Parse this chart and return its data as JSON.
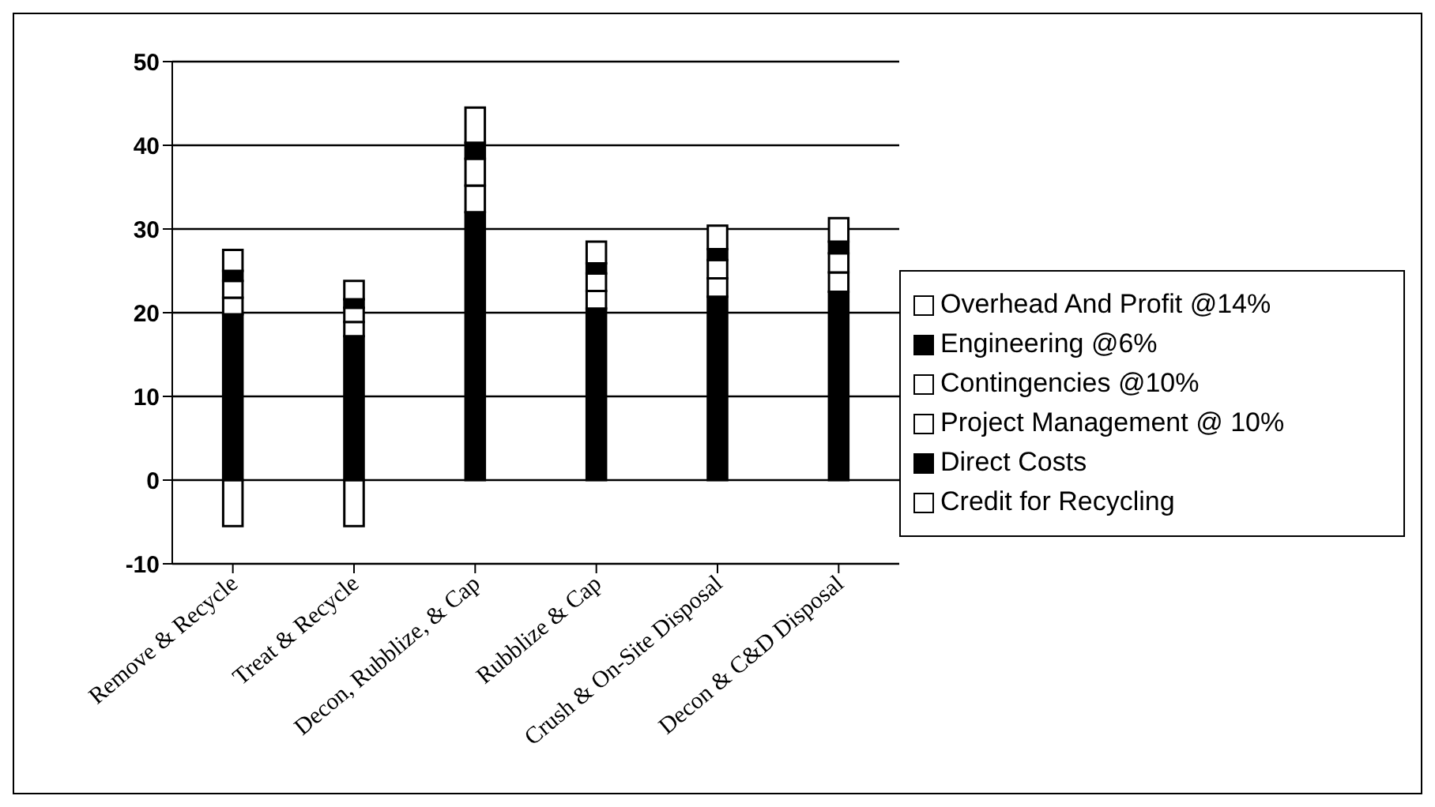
{
  "chart_data": {
    "type": "bar",
    "stacked": true,
    "categories": [
      "Remove & Recycle",
      "Treat & Recycle",
      "Decon, Rubblize, & Cap",
      "Rubblize & Cap",
      "Crush & On-Site Disposal",
      "Decon & C&D Disposal"
    ],
    "series": [
      {
        "name": "Credit for Recycling",
        "color": "#ffffff",
        "values": [
          -5.5,
          -5.5,
          null,
          null,
          null,
          null
        ]
      },
      {
        "name": "Direct Costs",
        "color": "#000000",
        "values": [
          19.8,
          17.2,
          32,
          20.5,
          21.9,
          22.5
        ]
      },
      {
        "name": "Project Management @ 10%",
        "color": "#ffffff",
        "values": [
          2.0,
          1.7,
          3.2,
          2.1,
          2.2,
          2.3
        ]
      },
      {
        "name": "Contingencies @10%",
        "color": "#ffffff",
        "values": [
          2.0,
          1.7,
          3.2,
          2.1,
          2.2,
          2.3
        ]
      },
      {
        "name": "Engineering @6%",
        "color": "#000000",
        "values": [
          1.2,
          1.0,
          1.9,
          1.2,
          1.3,
          1.4
        ]
      },
      {
        "name": "Overhead And Profit @14%",
        "color": "#ffffff",
        "values": [
          2.5,
          2.2,
          4.2,
          2.6,
          2.8,
          2.8
        ]
      }
    ],
    "ylim": [
      -10,
      50
    ],
    "yticks": [
      -10,
      0,
      10,
      20,
      30,
      40,
      50
    ],
    "grid": "y",
    "legend": "right"
  }
}
